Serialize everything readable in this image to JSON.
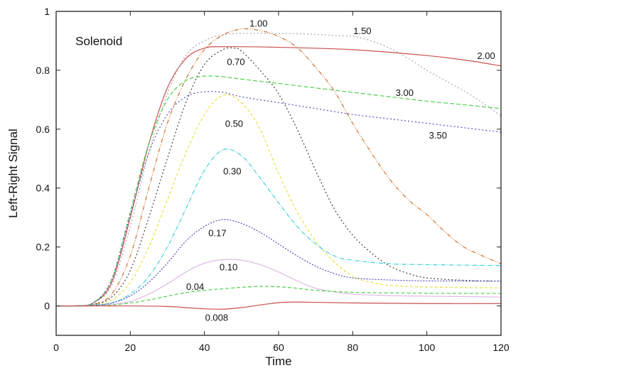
{
  "chart_data": {
    "type": "line",
    "title": "Solenoid",
    "xlabel": "Time",
    "ylabel": "Left-Right Signal",
    "xlim": [
      0,
      120
    ],
    "ylim": [
      -0.1,
      1
    ],
    "xticks": [
      0,
      20,
      40,
      60,
      80,
      100,
      120
    ],
    "xtick_labels": [
      "0",
      "20",
      "40",
      "60",
      "80",
      "100",
      "120"
    ],
    "yticks": [
      0,
      0.2,
      0.4,
      0.6,
      0.8,
      1
    ],
    "ytick_labels": [
      "0",
      "0.2",
      "0.4",
      "0.6",
      "0.8",
      "1"
    ],
    "grid": false,
    "legend": "inline curve labels",
    "series": [
      {
        "name": "2.00",
        "color": "#c85050",
        "dash": "",
        "label_at": [
          116,
          0.85
        ],
        "x": [
          0,
          5,
          10,
          15,
          20,
          25,
          30,
          35,
          40,
          45,
          60,
          80,
          100,
          110,
          120
        ],
        "y": [
          0,
          0,
          0.01,
          0.08,
          0.3,
          0.55,
          0.74,
          0.84,
          0.875,
          0.88,
          0.878,
          0.87,
          0.85,
          0.835,
          0.815
        ]
      },
      {
        "name": "1.50",
        "color": "#a8a8a8",
        "dash": "2,3",
        "label_at": [
          82.6,
          0.935
        ],
        "x": [
          0,
          5,
          10,
          15,
          20,
          25,
          30,
          35,
          40,
          45,
          50,
          60,
          70,
          75,
          80,
          85,
          90,
          95,
          100,
          105,
          110,
          115,
          120
        ],
        "y": [
          0,
          0,
          0.01,
          0.07,
          0.27,
          0.52,
          0.72,
          0.85,
          0.9,
          0.92,
          0.925,
          0.925,
          0.922,
          0.918,
          0.915,
          0.9,
          0.875,
          0.84,
          0.8,
          0.765,
          0.73,
          0.69,
          0.645
        ]
      },
      {
        "name": "1.00",
        "color": "#d07030",
        "dash": "6,2,1,2,1,2",
        "label_at": [
          54.6,
          0.96
        ],
        "x": [
          0,
          5,
          10,
          15,
          20,
          25,
          30,
          35,
          40,
          45,
          50,
          55,
          60,
          65,
          70,
          75,
          80,
          85,
          90,
          95,
          100,
          105,
          110,
          115,
          120
        ],
        "y": [
          0,
          0,
          0.005,
          0.04,
          0.17,
          0.4,
          0.62,
          0.77,
          0.87,
          0.92,
          0.94,
          0.935,
          0.915,
          0.877,
          0.81,
          0.73,
          0.62,
          0.52,
          0.43,
          0.36,
          0.31,
          0.25,
          0.2,
          0.17,
          0.143
        ]
      },
      {
        "name": "0.70",
        "color": "#404040",
        "dash": "2,3",
        "label_at": [
          48.5,
          0.83
        ],
        "x": [
          0,
          5,
          10,
          15,
          20,
          25,
          30,
          35,
          40,
          45,
          48,
          50,
          55,
          60,
          65,
          70,
          75,
          80,
          85,
          90,
          95,
          100,
          110,
          120
        ],
        "y": [
          0,
          0,
          0.005,
          0.03,
          0.12,
          0.3,
          0.5,
          0.69,
          0.82,
          0.87,
          0.875,
          0.865,
          0.8,
          0.72,
          0.6,
          0.46,
          0.33,
          0.24,
          0.18,
          0.135,
          0.11,
          0.095,
          0.087,
          0.084
        ]
      },
      {
        "name": "3.00",
        "color": "#50d050",
        "dash": "6,3",
        "label_at": [
          94,
          0.725
        ],
        "x": [
          0,
          5,
          10,
          15,
          20,
          25,
          30,
          35,
          40,
          45,
          50,
          60,
          70,
          80,
          90,
          100,
          110,
          120
        ],
        "y": [
          0,
          0,
          0.01,
          0.09,
          0.32,
          0.55,
          0.7,
          0.765,
          0.78,
          0.778,
          0.77,
          0.755,
          0.74,
          0.725,
          0.71,
          0.695,
          0.683,
          0.67
        ]
      },
      {
        "name": "3.50",
        "color": "#5050c0",
        "dash": "2,3",
        "label_at": [
          103,
          0.58
        ],
        "x": [
          0,
          5,
          10,
          15,
          20,
          25,
          30,
          35,
          40,
          45,
          50,
          60,
          70,
          80,
          90,
          100,
          110,
          120
        ],
        "y": [
          0,
          0,
          0.01,
          0.09,
          0.31,
          0.52,
          0.65,
          0.71,
          0.727,
          0.725,
          0.71,
          0.69,
          0.67,
          0.65,
          0.635,
          0.62,
          0.605,
          0.59
        ]
      },
      {
        "name": "0.50",
        "color": "#e8e040",
        "dash": "4,3",
        "label_at": [
          48,
          0.62
        ],
        "x": [
          0,
          5,
          10,
          15,
          20,
          25,
          30,
          35,
          40,
          45,
          50,
          55,
          60,
          65,
          70,
          75,
          80,
          85,
          90,
          100,
          120
        ],
        "y": [
          0,
          0,
          0.003,
          0.02,
          0.08,
          0.2,
          0.36,
          0.52,
          0.65,
          0.715,
          0.69,
          0.6,
          0.45,
          0.32,
          0.22,
          0.15,
          0.1,
          0.08,
          0.07,
          0.064,
          0.061
        ]
      },
      {
        "name": "0.30",
        "color": "#40d0d8",
        "dash": "6,2,1,2",
        "label_at": [
          47.5,
          0.458
        ],
        "x": [
          0,
          5,
          10,
          15,
          20,
          25,
          30,
          35,
          40,
          45,
          50,
          55,
          60,
          65,
          70,
          75,
          80,
          90,
          100,
          120
        ],
        "y": [
          0,
          0,
          0.003,
          0.01,
          0.04,
          0.1,
          0.2,
          0.33,
          0.46,
          0.53,
          0.51,
          0.435,
          0.35,
          0.27,
          0.21,
          0.17,
          0.155,
          0.143,
          0.14,
          0.137
        ]
      },
      {
        "name": "0.17",
        "color": "#5050c0",
        "dash": "2,2",
        "label_at": [
          43.5,
          0.248
        ],
        "x": [
          0,
          5,
          10,
          15,
          20,
          25,
          30,
          35,
          40,
          45,
          50,
          55,
          60,
          65,
          70,
          75,
          80,
          90,
          100,
          120
        ],
        "y": [
          0,
          0,
          0.002,
          0.01,
          0.034,
          0.08,
          0.145,
          0.22,
          0.27,
          0.293,
          0.28,
          0.25,
          0.21,
          0.17,
          0.135,
          0.11,
          0.095,
          0.088,
          0.085,
          0.084
        ]
      },
      {
        "name": "0.10",
        "color": "#c070d0",
        "dash": "1,1",
        "label_at": [
          46.5,
          0.133
        ],
        "x": [
          0,
          10,
          15,
          20,
          25,
          30,
          35,
          40,
          45,
          50,
          55,
          60,
          65,
          70,
          75,
          80,
          90,
          100,
          120
        ],
        "y": [
          0,
          0,
          0.005,
          0.015,
          0.04,
          0.075,
          0.115,
          0.145,
          0.157,
          0.155,
          0.14,
          0.115,
          0.085,
          0.06,
          0.048,
          0.04,
          0.035,
          0.033,
          0.03
        ]
      },
      {
        "name": "0.04",
        "color": "#50d050",
        "dash": "5,3",
        "label_at": [
          37.5,
          0.067
        ],
        "x": [
          0,
          10,
          15,
          20,
          25,
          30,
          35,
          40,
          45,
          50,
          55,
          60,
          65,
          70,
          80,
          100,
          120
        ],
        "y": [
          0,
          0,
          0.003,
          0.01,
          0.02,
          0.033,
          0.045,
          0.053,
          0.058,
          0.063,
          0.066,
          0.065,
          0.06,
          0.053,
          0.046,
          0.043,
          0.0425
        ]
      },
      {
        "name": "0.008",
        "color": "#c85050",
        "dash": "",
        "label_at": [
          43.3,
          -0.039
        ],
        "x": [
          0,
          20,
          30,
          35,
          40,
          45,
          50,
          55,
          60,
          65,
          70,
          80,
          100,
          120
        ],
        "y": [
          0,
          0,
          -0.002,
          -0.006,
          -0.01,
          -0.011,
          -0.006,
          0.003,
          0.011,
          0.013,
          0.012,
          0.01,
          0.008,
          0.008
        ]
      }
    ]
  }
}
